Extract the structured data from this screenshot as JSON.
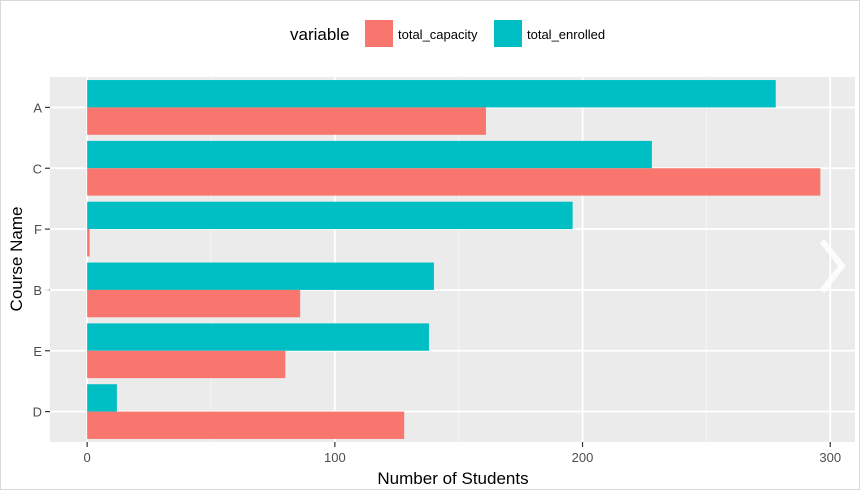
{
  "chart_data": {
    "type": "bar",
    "orientation": "horizontal",
    "categories": [
      "A",
      "C",
      "F",
      "B",
      "E",
      "D"
    ],
    "series": [
      {
        "name": "total_capacity",
        "color": "#F8766D",
        "values": [
          161,
          296,
          1,
          86,
          80,
          128
        ]
      },
      {
        "name": "total_enrolled",
        "color": "#00BFC4",
        "values": [
          278,
          228,
          196,
          140,
          138,
          12
        ]
      }
    ],
    "xlabel": "Number of Students",
    "ylabel": "Course Name",
    "xlim": [
      -15,
      310
    ],
    "xticks": [
      0,
      100,
      200,
      300
    ],
    "grid": true,
    "legend": {
      "title": "variable",
      "position": "top"
    }
  },
  "carousel": {
    "prev_icon": "chevron-left-icon",
    "next_icon": "chevron-right-icon"
  }
}
